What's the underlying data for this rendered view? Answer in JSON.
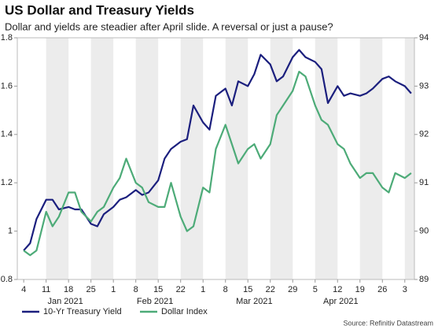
{
  "chart_data": {
    "type": "line",
    "title": "US Dollar and Treasury Yields",
    "subtitle": "Dollar and yields are steadier after April slide. A reversal or just a pause?",
    "source": "Source: Refinitiv Datastream",
    "x": [
      "2021-01-04",
      "2021-01-06",
      "2021-01-08",
      "2021-01-11",
      "2021-01-13",
      "2021-01-15",
      "2021-01-18",
      "2021-01-20",
      "2021-01-22",
      "2021-01-25",
      "2021-01-27",
      "2021-01-29",
      "2021-02-01",
      "2021-02-03",
      "2021-02-05",
      "2021-02-08",
      "2021-02-10",
      "2021-02-12",
      "2021-02-15",
      "2021-02-17",
      "2021-02-19",
      "2021-02-22",
      "2021-02-24",
      "2021-02-26",
      "2021-03-01",
      "2021-03-03",
      "2021-03-05",
      "2021-03-08",
      "2021-03-10",
      "2021-03-12",
      "2021-03-15",
      "2021-03-17",
      "2021-03-19",
      "2021-03-22",
      "2021-03-24",
      "2021-03-26",
      "2021-03-29",
      "2021-03-31",
      "2021-04-02",
      "2021-04-05",
      "2021-04-07",
      "2021-04-09",
      "2021-04-12",
      "2021-04-14",
      "2021-04-16",
      "2021-04-19",
      "2021-04-21",
      "2021-04-23",
      "2021-04-26",
      "2021-04-28",
      "2021-04-30",
      "2021-05-03",
      "2021-05-05"
    ],
    "series": [
      {
        "name": "10-Yr Treasury Yield",
        "color": "#1b1f7e",
        "values": [
          0.92,
          0.95,
          1.05,
          1.13,
          1.13,
          1.09,
          1.1,
          1.09,
          1.09,
          1.03,
          1.02,
          1.07,
          1.1,
          1.13,
          1.14,
          1.17,
          1.15,
          1.16,
          1.21,
          1.3,
          1.34,
          1.37,
          1.38,
          1.52,
          1.45,
          1.42,
          1.56,
          1.59,
          1.52,
          1.62,
          1.6,
          1.65,
          1.73,
          1.69,
          1.62,
          1.64,
          1.72,
          1.75,
          1.72,
          1.7,
          1.67,
          1.53,
          1.6,
          1.56,
          1.57,
          1.56,
          1.57,
          1.59,
          1.63,
          1.64,
          1.62,
          1.6,
          1.57
        ]
      },
      {
        "name": "Dollar Index",
        "color": "#4dab78",
        "axis": "y2",
        "values": [
          89.6,
          89.5,
          89.6,
          90.4,
          90.1,
          90.3,
          90.8,
          90.8,
          90.4,
          90.2,
          90.4,
          90.5,
          90.9,
          91.1,
          91.5,
          91.0,
          90.9,
          90.6,
          90.5,
          90.5,
          91.0,
          90.3,
          90.0,
          90.1,
          90.9,
          90.8,
          91.7,
          92.2,
          91.8,
          91.4,
          91.7,
          91.8,
          91.5,
          91.8,
          92.4,
          92.6,
          92.9,
          93.3,
          93.2,
          92.6,
          92.3,
          92.2,
          91.8,
          91.7,
          91.4,
          91.1,
          91.2,
          91.2,
          90.9,
          90.8,
          91.2,
          91.1,
          91.2
        ]
      }
    ],
    "xlim": [
      "2021-01-02",
      "2021-05-06"
    ],
    "xticks": [
      {
        "value": "2021-01-04",
        "label": "4"
      },
      {
        "value": "2021-01-11",
        "label": "11"
      },
      {
        "value": "2021-01-18",
        "label": "18"
      },
      {
        "value": "2021-01-25",
        "label": "25"
      },
      {
        "value": "2021-02-01",
        "label": "1"
      },
      {
        "value": "2021-02-08",
        "label": "8"
      },
      {
        "value": "2021-02-15",
        "label": "15"
      },
      {
        "value": "2021-02-22",
        "label": "22"
      },
      {
        "value": "2021-03-01",
        "label": "1"
      },
      {
        "value": "2021-03-08",
        "label": "8"
      },
      {
        "value": "2021-03-15",
        "label": "15"
      },
      {
        "value": "2021-03-22",
        "label": "22"
      },
      {
        "value": "2021-03-29",
        "label": "29"
      },
      {
        "value": "2021-04-05",
        "label": "5"
      },
      {
        "value": "2021-04-12",
        "label": "12"
      },
      {
        "value": "2021-04-19",
        "label": "19"
      },
      {
        "value": "2021-04-26",
        "label": "26"
      },
      {
        "value": "2021-05-03",
        "label": "3"
      }
    ],
    "month_labels": [
      {
        "value": "2021-01-17",
        "label": "Jan 2021"
      },
      {
        "value": "2021-02-14",
        "label": "Feb 2021"
      },
      {
        "value": "2021-03-17",
        "label": "Mar 2021"
      },
      {
        "value": "2021-04-13",
        "label": "Apr 2021"
      }
    ],
    "ylim": [
      0.8,
      1.8
    ],
    "yticks": [
      0.8,
      1.0,
      1.2,
      1.4,
      1.6,
      1.8
    ],
    "y2lim": [
      89,
      94
    ],
    "y2ticks": [
      89,
      90,
      91,
      92,
      93,
      94
    ],
    "shaded_weeks": true
  }
}
